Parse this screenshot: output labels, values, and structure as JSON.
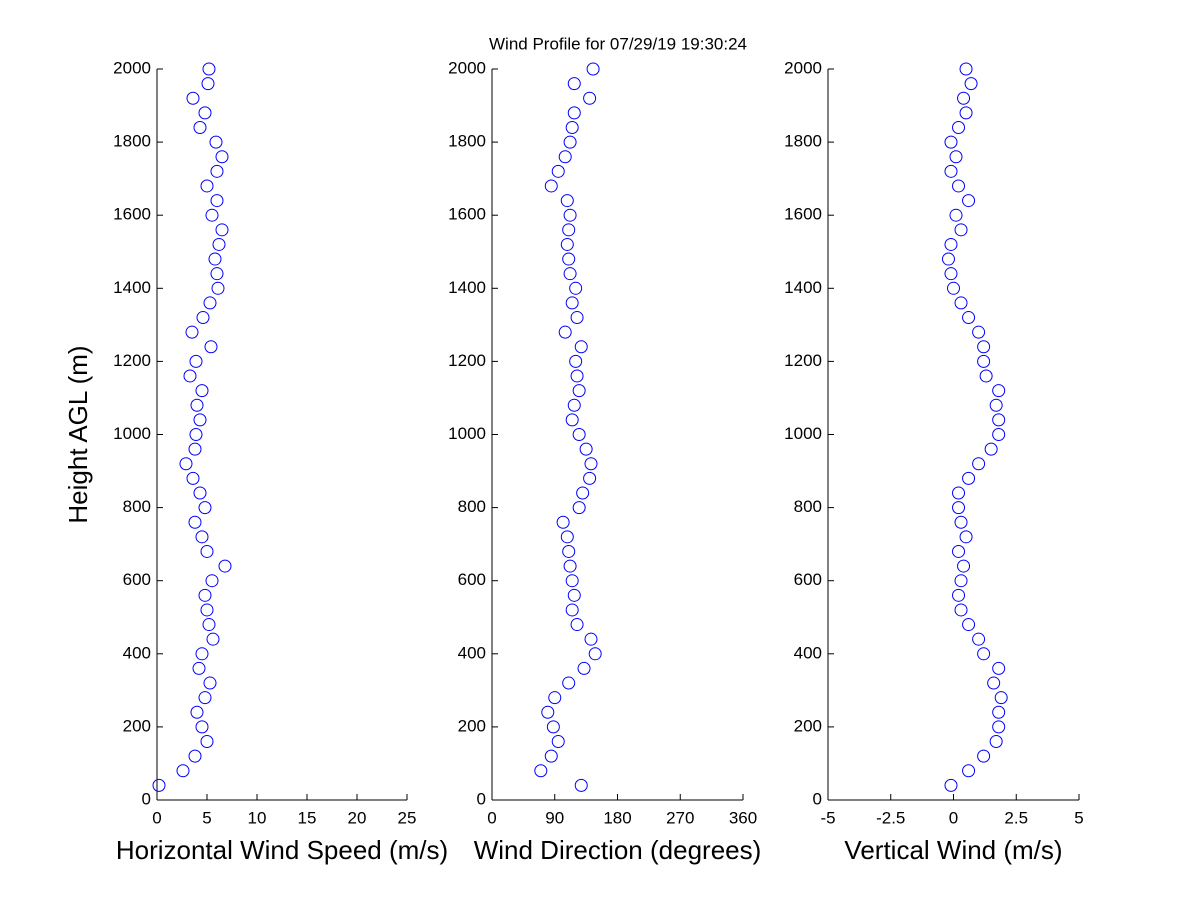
{
  "title": "Wind Profile for  07/29/19 19:30:24",
  "chart_data": [
    {
      "type": "scatter",
      "xlabel": "Horizontal Wind Speed (m/s)",
      "ylabel": "Height AGL (m)",
      "color": "#0000ff",
      "xlim": [
        0,
        25
      ],
      "xticks": [
        0,
        5,
        10,
        15,
        20,
        25
      ],
      "ylim": [
        0,
        2000
      ],
      "yticks": [
        0,
        200,
        400,
        600,
        800,
        1000,
        1200,
        1400,
        1600,
        1800,
        2000
      ],
      "x": [
        0.2,
        2.6,
        3.8,
        5.0,
        4.5,
        4.0,
        4.8,
        5.3,
        4.2,
        4.5,
        5.6,
        5.2,
        5.0,
        4.8,
        5.5,
        6.8,
        5.0,
        4.5,
        3.8,
        4.8,
        4.3,
        3.6,
        2.9,
        3.8,
        3.9,
        4.3,
        4.0,
        4.5,
        3.3,
        3.9,
        5.4,
        3.5,
        4.6,
        5.3,
        6.1,
        6.0,
        5.8,
        6.2,
        6.5,
        5.5,
        6.0,
        5.0,
        6.0,
        6.5,
        5.9,
        4.3,
        4.8,
        3.6,
        5.1,
        5.2
      ],
      "y": [
        40,
        80,
        120,
        160,
        200,
        240,
        280,
        320,
        360,
        400,
        440,
        480,
        520,
        560,
        600,
        640,
        680,
        720,
        760,
        800,
        840,
        880,
        920,
        960,
        1000,
        1040,
        1080,
        1120,
        1160,
        1200,
        1240,
        1280,
        1320,
        1360,
        1400,
        1440,
        1480,
        1520,
        1560,
        1600,
        1640,
        1680,
        1720,
        1760,
        1800,
        1840,
        1880,
        1920,
        1960,
        2000
      ]
    },
    {
      "type": "scatter",
      "xlabel": "Wind Direction (degrees)",
      "color": "#0000ff",
      "xlim": [
        0,
        360
      ],
      "xticks": [
        0,
        90,
        180,
        270,
        360
      ],
      "ylim": [
        0,
        2000
      ],
      "yticks": [
        0,
        200,
        400,
        600,
        800,
        1000,
        1200,
        1400,
        1600,
        1800,
        2000
      ],
      "x": [
        128,
        70,
        85,
        95,
        88,
        80,
        90,
        110,
        132,
        148,
        142,
        122,
        115,
        118,
        115,
        112,
        110,
        108,
        102,
        125,
        130,
        140,
        142,
        135,
        125,
        115,
        118,
        125,
        122,
        120,
        128,
        105,
        122,
        115,
        120,
        112,
        110,
        108,
        110,
        112,
        108,
        85,
        95,
        105,
        112,
        115,
        118,
        140,
        118,
        145
      ],
      "y": [
        40,
        80,
        120,
        160,
        200,
        240,
        280,
        320,
        360,
        400,
        440,
        480,
        520,
        560,
        600,
        640,
        680,
        720,
        760,
        800,
        840,
        880,
        920,
        960,
        1000,
        1040,
        1080,
        1120,
        1160,
        1200,
        1240,
        1280,
        1320,
        1360,
        1400,
        1440,
        1480,
        1520,
        1560,
        1600,
        1640,
        1680,
        1720,
        1760,
        1800,
        1840,
        1880,
        1920,
        1960,
        2000
      ]
    },
    {
      "type": "scatter",
      "xlabel": "Vertical Wind (m/s)",
      "color": "#0000ff",
      "xlim": [
        -5,
        5
      ],
      "xticks": [
        -5,
        -2.5,
        0,
        2.5,
        5
      ],
      "ylim": [
        0,
        2000
      ],
      "yticks": [
        0,
        200,
        400,
        600,
        800,
        1000,
        1200,
        1400,
        1600,
        1800,
        2000
      ],
      "x": [
        -0.1,
        0.6,
        1.2,
        1.7,
        1.8,
        1.8,
        1.9,
        1.6,
        1.8,
        1.2,
        1.0,
        0.6,
        0.3,
        0.2,
        0.3,
        0.4,
        0.2,
        0.5,
        0.3,
        0.2,
        0.2,
        0.6,
        1.0,
        1.5,
        1.8,
        1.8,
        1.7,
        1.8,
        1.3,
        1.2,
        1.2,
        1.0,
        0.6,
        0.3,
        0.0,
        -0.1,
        -0.2,
        -0.1,
        0.3,
        0.1,
        0.6,
        0.2,
        -0.1,
        0.1,
        -0.1,
        0.2,
        0.5,
        0.4,
        0.7,
        0.5
      ],
      "y": [
        40,
        80,
        120,
        160,
        200,
        240,
        280,
        320,
        360,
        400,
        440,
        480,
        520,
        560,
        600,
        640,
        680,
        720,
        760,
        800,
        840,
        880,
        920,
        960,
        1000,
        1040,
        1080,
        1120,
        1160,
        1200,
        1240,
        1280,
        1320,
        1360,
        1400,
        1440,
        1480,
        1520,
        1560,
        1600,
        1640,
        1680,
        1720,
        1760,
        1800,
        1840,
        1880,
        1920,
        1960,
        2000
      ]
    }
  ]
}
